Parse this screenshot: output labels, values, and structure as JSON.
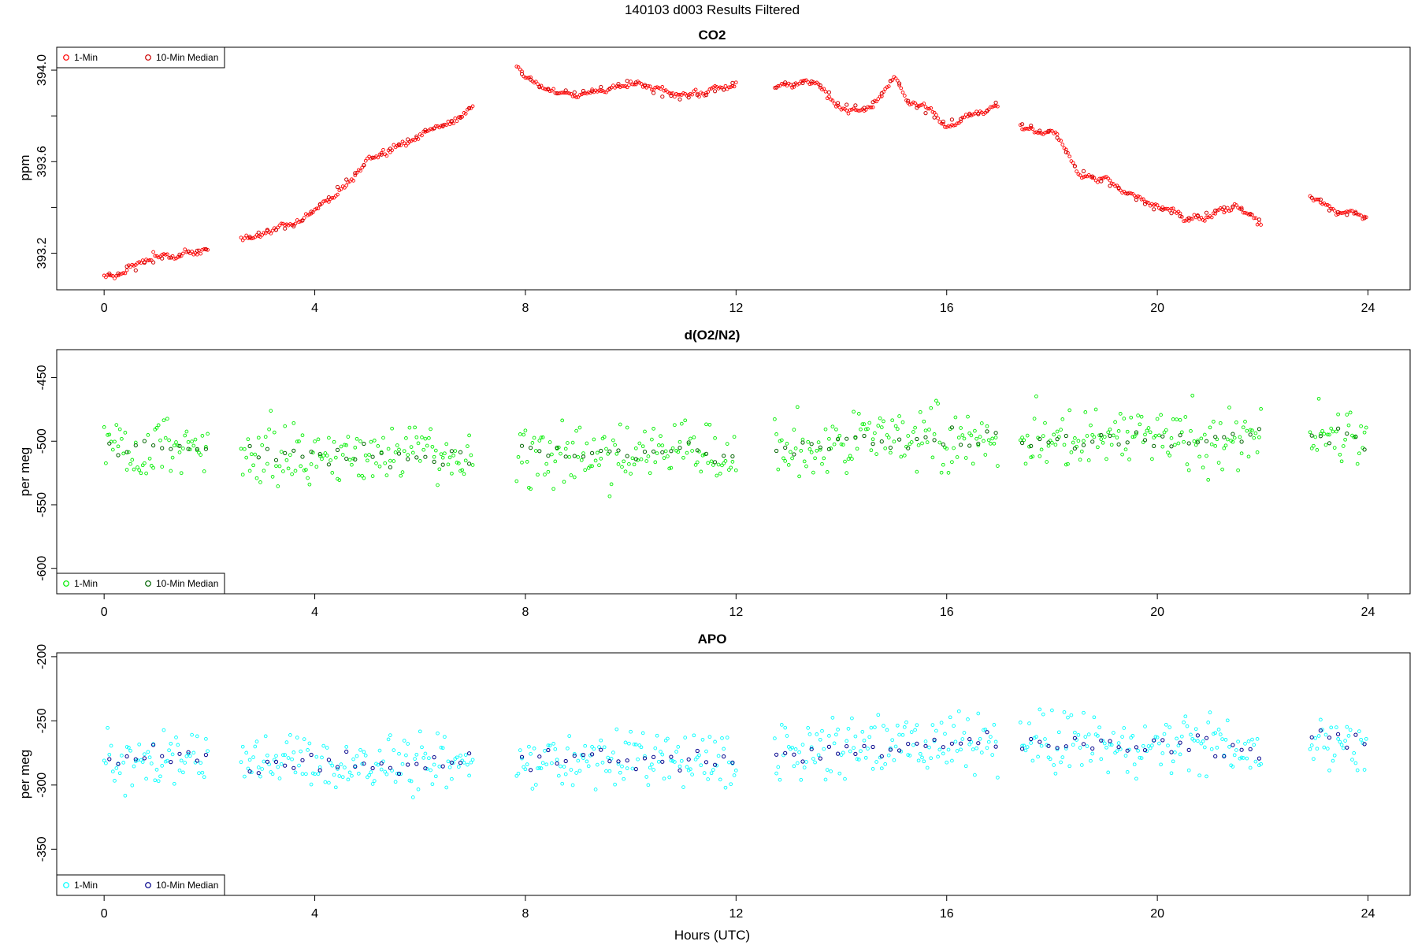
{
  "title": "140103   d003   Results Filtered",
  "xlabel": "Hours (UTC)",
  "chart_data": [
    {
      "type": "scatter",
      "title": "CO2",
      "ylabel": "ppm",
      "xlim": [
        -0.9,
        24.8
      ],
      "ylim": [
        393.04,
        394.1
      ],
      "xticks": [
        0,
        4,
        8,
        12,
        16,
        20,
        24
      ],
      "yticks": [
        393.2,
        393.4,
        393.6,
        393.8,
        394.0
      ],
      "ytick_labels": [
        "393.2",
        "",
        "393.6",
        "",
        "394.0"
      ],
      "legend": {
        "position": "top-left",
        "entries": [
          "1-Min",
          "10-Min Median"
        ]
      },
      "colors": {
        "one_min": "#ff0000",
        "median": "#cc0000"
      },
      "gaps": [
        [
          2.0,
          2.6
        ],
        [
          7.0,
          7.8
        ],
        [
          12.0,
          12.7
        ],
        [
          17.0,
          17.4
        ],
        [
          22.0,
          22.9
        ]
      ],
      "series": [
        {
          "name": "1-Min",
          "trend": [
            [
              0.0,
              393.1
            ],
            [
              0.5,
              393.13
            ],
            [
              1.0,
              393.17
            ],
            [
              1.5,
              393.2
            ],
            [
              2.0,
              393.22
            ],
            [
              2.6,
              393.26
            ],
            [
              3.0,
              393.3
            ],
            [
              3.5,
              393.31
            ],
            [
              4.0,
              393.38
            ],
            [
              4.5,
              393.5
            ],
            [
              5.0,
              393.6
            ],
            [
              5.5,
              393.66
            ],
            [
              6.0,
              393.73
            ],
            [
              6.5,
              393.76
            ],
            [
              7.0,
              393.84
            ],
            [
              7.8,
              394.03
            ],
            [
              8.0,
              393.97
            ],
            [
              8.5,
              393.9
            ],
            [
              9.0,
              393.9
            ],
            [
              9.5,
              393.92
            ],
            [
              10.0,
              393.96
            ],
            [
              10.5,
              393.9
            ],
            [
              11.0,
              393.88
            ],
            [
              11.5,
              393.9
            ],
            [
              12.0,
              393.94
            ],
            [
              12.7,
              393.92
            ],
            [
              13.0,
              393.94
            ],
            [
              13.5,
              393.95
            ],
            [
              14.0,
              393.85
            ],
            [
              14.5,
              393.83
            ],
            [
              15.0,
              393.98
            ],
            [
              15.3,
              393.85
            ],
            [
              16.0,
              393.77
            ],
            [
              16.5,
              393.8
            ],
            [
              17.0,
              393.85
            ],
            [
              17.4,
              393.76
            ],
            [
              18.0,
              393.73
            ],
            [
              18.5,
              393.56
            ],
            [
              19.0,
              393.52
            ],
            [
              19.5,
              393.45
            ],
            [
              20.0,
              393.39
            ],
            [
              20.5,
              393.36
            ],
            [
              21.0,
              393.37
            ],
            [
              21.5,
              393.42
            ],
            [
              22.0,
              393.33
            ],
            [
              22.9,
              393.46
            ],
            [
              23.3,
              393.39
            ],
            [
              24.0,
              393.35
            ]
          ]
        }
      ]
    },
    {
      "type": "scatter",
      "title": "d(O2/N2)",
      "ylabel": "per meg",
      "xlim": [
        -0.9,
        24.8
      ],
      "ylim": [
        -620,
        -428
      ],
      "xticks": [
        0,
        4,
        8,
        12,
        16,
        20,
        24
      ],
      "yticks": [
        -450,
        -500,
        -550,
        -600
      ],
      "ytick_labels": [
        "-450",
        "-500",
        "-550",
        "-600"
      ],
      "legend": {
        "position": "bottom-left",
        "entries": [
          "1-Min",
          "10-Min Median"
        ]
      },
      "colors": {
        "one_min": "#00ee00",
        "median": "#006400"
      },
      "gaps": [
        [
          2.0,
          2.6
        ],
        [
          7.0,
          7.8
        ],
        [
          12.0,
          12.7
        ],
        [
          17.0,
          17.4
        ],
        [
          22.0,
          22.9
        ]
      ],
      "series": [
        {
          "name": "1-Min",
          "trend": [
            [
              0,
              -505
            ],
            [
              2,
              -505
            ],
            [
              2.6,
              -510
            ],
            [
              7,
              -512
            ],
            [
              7.8,
              -510
            ],
            [
              12,
              -510
            ],
            [
              12.7,
              -505
            ],
            [
              17,
              -497
            ],
            [
              17.4,
              -498
            ],
            [
              22,
              -498
            ],
            [
              22.9,
              -495
            ],
            [
              24,
              -495
            ]
          ]
        }
      ]
    },
    {
      "type": "scatter",
      "title": "APO",
      "ylabel": "per meg",
      "xlim": [
        -0.9,
        24.8
      ],
      "ylim": [
        -386,
        -197
      ],
      "xticks": [
        0,
        4,
        8,
        12,
        16,
        20,
        24
      ],
      "yticks": [
        -200,
        -250,
        -300,
        -350
      ],
      "ytick_labels": [
        "-200",
        "-250",
        "-300",
        "-350"
      ],
      "legend": {
        "position": "bottom-left",
        "entries": [
          "1-Min",
          "10-Min Median"
        ]
      },
      "colors": {
        "one_min": "#00ffff",
        "median": "#00008b"
      },
      "gaps": [
        [
          2.0,
          2.6
        ],
        [
          7.0,
          7.8
        ],
        [
          12.0,
          12.7
        ],
        [
          17.0,
          17.4
        ],
        [
          22.0,
          22.9
        ]
      ],
      "series": [
        {
          "name": "1-Min",
          "trend": [
            [
              0,
              -280
            ],
            [
              2,
              -280
            ],
            [
              2.6,
              -282
            ],
            [
              7,
              -283
            ],
            [
              7.8,
              -282
            ],
            [
              12,
              -280
            ],
            [
              12.7,
              -275
            ],
            [
              17,
              -265
            ],
            [
              17.4,
              -270
            ],
            [
              22,
              -270
            ],
            [
              22.9,
              -265
            ],
            [
              24,
              -265
            ]
          ]
        }
      ]
    }
  ]
}
